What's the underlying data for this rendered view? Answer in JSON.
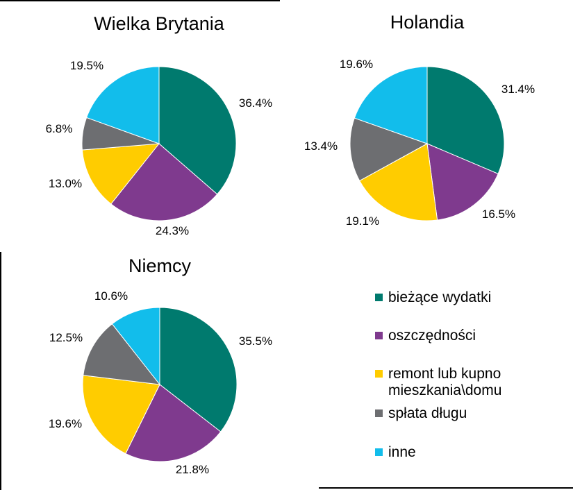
{
  "colors": {
    "bieżące wydatki": "#007A6E",
    "oszczędności": "#7F3A8E",
    "remont lub kupno mieszkania\\domu": "#FFCC00",
    "spłata długu": "#6D6E71",
    "inne": "#12BDEB"
  },
  "legend": {
    "items": [
      {
        "label": "bieżące wydatki",
        "color": "#007A6E",
        "icon": "square-swatch"
      },
      {
        "label": "oszczędności",
        "color": "#7F3A8E",
        "icon": "square-swatch"
      },
      {
        "label": "remont lub kupno\nmieszkania\\domu",
        "color": "#FFCC00",
        "icon": "square-swatch"
      },
      {
        "label": "spłata długu",
        "color": "#6D6E71",
        "icon": "square-swatch"
      },
      {
        "label": "inne",
        "color": "#12BDEB",
        "icon": "square-swatch"
      }
    ]
  },
  "chart_data": [
    {
      "type": "pie",
      "title": "Wielka Brytania",
      "categories": [
        "bieżące wydatki",
        "oszczędności",
        "remont lub kupno mieszkania\\domu",
        "spłata długu",
        "inne"
      ],
      "values": [
        36.4,
        24.3,
        13.0,
        6.8,
        19.5
      ],
      "data_labels": [
        "36.4%",
        "24.3%",
        "13.0%",
        "6.8%",
        "19.5%"
      ]
    },
    {
      "type": "pie",
      "title": "Holandia",
      "categories": [
        "bieżące wydatki",
        "oszczędności",
        "remont lub kupno mieszkania\\domu",
        "spłata długu",
        "inne"
      ],
      "values": [
        31.4,
        16.5,
        19.1,
        13.4,
        19.6
      ],
      "data_labels": [
        "31.4%",
        "16.5%",
        "19.1%",
        "13.4%",
        "19.6%"
      ]
    },
    {
      "type": "pie",
      "title": "Niemcy",
      "categories": [
        "bieżące wydatki",
        "oszczędności",
        "remont lub kupno mieszkania\\domu",
        "spłata długu",
        "inne"
      ],
      "values": [
        35.5,
        21.8,
        19.6,
        12.5,
        10.6
      ],
      "data_labels": [
        "35.5%",
        "21.8%",
        "19.6%",
        "12.5%",
        "10.6%"
      ]
    }
  ]
}
